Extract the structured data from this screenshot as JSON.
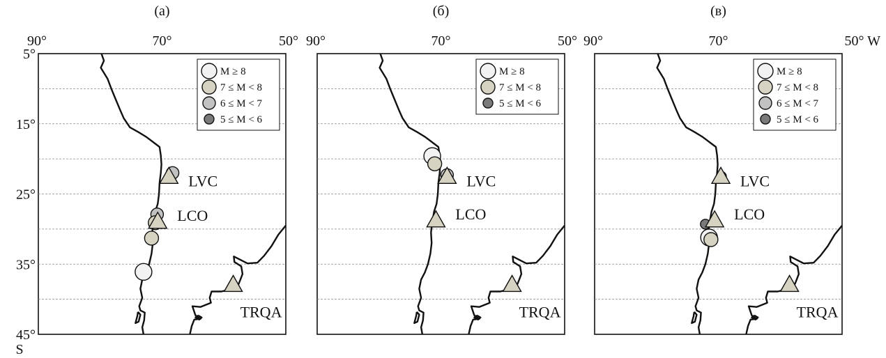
{
  "panels": [
    {
      "id": "a",
      "title": "(a)",
      "lon_labels": [
        "90°",
        "70°",
        "50°"
      ],
      "lat_labels": [
        "5°",
        "15°",
        "25°",
        "35°",
        "45°"
      ],
      "hemisphere_label": "S",
      "legend": [
        {
          "label": "M ≥ 8",
          "color": "#f2f2f2"
        },
        {
          "label": "7 ≤ M < 8",
          "color": "#d6d3c2"
        },
        {
          "label": "6 ≤ M < 7",
          "color": "#c2c2c2"
        },
        {
          "label": "5 ≤ M < 6",
          "color": "#7a7a7a"
        }
      ],
      "stations": [
        {
          "name": "LVC",
          "lon": -68.9,
          "lat": -22.6
        },
        {
          "name": "LCO",
          "lon": -70.7,
          "lat": -29.0
        },
        {
          "name": "TRQA",
          "lon": -58.5,
          "lat": -38.0
        }
      ],
      "events": [
        {
          "lon": -68.3,
          "lat": -22.0,
          "class": 2
        },
        {
          "lon": -70.8,
          "lat": -27.9,
          "class": 2
        },
        {
          "lon": -71.1,
          "lat": -29.1,
          "class": 1
        },
        {
          "lon": -71.7,
          "lat": -31.3,
          "class": 1
        },
        {
          "lon": -73.0,
          "lat": -36.1,
          "class": 0
        }
      ]
    },
    {
      "id": "b",
      "title": "(б)",
      "lon_labels": [
        "90°",
        "70°",
        "50°"
      ],
      "lat_labels": [],
      "hemisphere_label": "",
      "legend": [
        {
          "label": "M ≥ 8",
          "color": "#f2f2f2"
        },
        {
          "label": "7 ≤ M < 8",
          "color": "#d6d3c2"
        },
        {
          "label": "5 ≤ M < 6",
          "color": "#7a7a7a"
        }
      ],
      "stations": [
        {
          "name": "LVC",
          "lon": -69.0,
          "lat": -22.6
        },
        {
          "name": "LCO",
          "lon": -70.8,
          "lat": -28.8
        },
        {
          "name": "TRQA",
          "lon": -58.5,
          "lat": -38.0
        }
      ],
      "events": [
        {
          "lon": -69.0,
          "lat": -22.3,
          "class": 2
        },
        {
          "lon": -71.4,
          "lat": -19.6,
          "class": 0
        },
        {
          "lon": -71.0,
          "lat": -20.7,
          "class": 1
        }
      ]
    },
    {
      "id": "c",
      "title": "(в)",
      "lon_labels": [
        "90°",
        "70°",
        "50° W"
      ],
      "lat_labels": [],
      "hemisphere_label": "",
      "legend": [
        {
          "label": "M ≥ 8",
          "color": "#f2f2f2"
        },
        {
          "label": "7 ≤ M < 8",
          "color": "#d6d3c2"
        },
        {
          "label": "6 ≤ M < 7",
          "color": "#c2c2c2"
        },
        {
          "label": "5 ≤ M < 6",
          "color": "#7a7a7a"
        }
      ],
      "stations": [
        {
          "name": "LVC",
          "lon": -69.6,
          "lat": -22.6
        },
        {
          "name": "LCO",
          "lon": -70.6,
          "lat": -28.8
        },
        {
          "name": "TRQA",
          "lon": -58.5,
          "lat": -38.0
        }
      ],
      "events": [
        {
          "lon": -69.5,
          "lat": -22.5,
          "class": 3
        },
        {
          "lon": -71.5,
          "lat": -31.2,
          "class": 0
        },
        {
          "lon": -71.2,
          "lat": -31.5,
          "class": 1
        },
        {
          "lon": -72.1,
          "lat": -29.3,
          "class": 3
        }
      ]
    }
  ]
}
